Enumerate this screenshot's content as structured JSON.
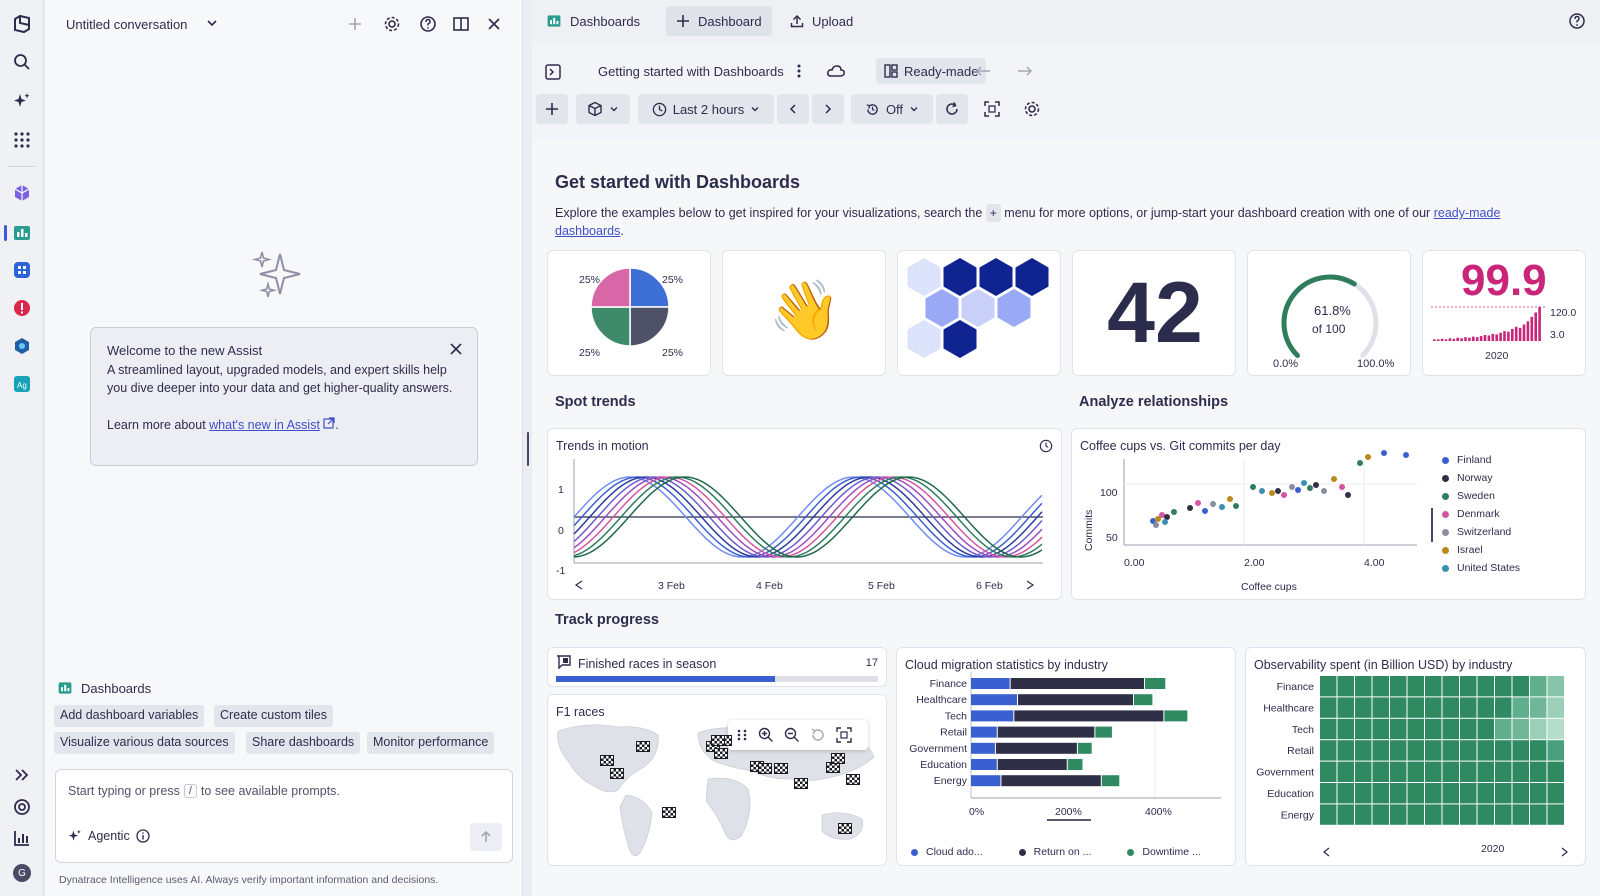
{
  "assist": {
    "conversation_title": "Untitled conversation",
    "welcome": {
      "title": "Welcome to the new Assist",
      "body": "A streamlined layout, upgraded models, and expert skills help you dive deeper into your data and get higher-quality answers.",
      "learn_prefix": "Learn more about ",
      "learn_link": "what's new in Assist",
      "learn_suffix": "."
    },
    "context_label": "Dashboards",
    "chips": [
      "Add dashboard variables",
      "Create custom tiles",
      "Visualize various data sources",
      "Share dashboards",
      "Monitor performance"
    ],
    "prompt_before": "Start typing or press",
    "prompt_key": "/",
    "prompt_after": "to see available prompts.",
    "agentic_label": "Agentic",
    "disclaimer": "Dynatrace Intelligence uses AI. Always verify important information and decisions.",
    "avatar_letter": "G"
  },
  "tabs": [
    {
      "label": "Dashboards"
    },
    {
      "label": "Dashboard"
    },
    {
      "label": "Upload"
    }
  ],
  "toolbar": {
    "dashboard_name": "Getting started with Dashboards",
    "ready_made": "Ready-made",
    "timeframe": "Last 2 hours",
    "refresh": "Off"
  },
  "intro": {
    "title": "Get started with Dashboards",
    "desc_before": "Explore the examples below to get inspired for your visualizations, search the",
    "desc_plus": "+",
    "desc_middle": "menu for more options, or jump-start your dashboard creation with one of our",
    "desc_link": "ready-made dashboards",
    "desc_end": "."
  },
  "pie": {
    "labels": [
      "25%",
      "25%",
      "25%",
      "25%"
    ],
    "colors": [
      "#3d6fd6",
      "#4f5169",
      "#3e8a6a",
      "#d867a8"
    ]
  },
  "emoji": "👋",
  "single_value": "42",
  "gauge": {
    "value_label": "61.8%",
    "of_label": "of 100",
    "min": "0.0%",
    "max": "100.0%",
    "fraction": 0.618
  },
  "sparkline": {
    "value": "99.9",
    "max_label": "120.0",
    "min_label": "3.0",
    "x_label": "2020"
  },
  "sections": {
    "trends": "Spot trends",
    "relationships": "Analyze relationships",
    "progress": "Track progress"
  },
  "trends_tile": {
    "title": "Trends in motion",
    "y_ticks": [
      "1",
      "0",
      "-1"
    ],
    "x_ticks": [
      "3 Feb",
      "4 Feb",
      "5 Feb",
      "6 Feb"
    ]
  },
  "scatter_tile": {
    "title": "Coffee cups vs. Git commits per day",
    "xlabel": "Coffee cups",
    "ylabel": "Commits",
    "x_ticks": [
      "0.00",
      "2.00",
      "4.00"
    ],
    "y_ticks": [
      "100",
      "50"
    ],
    "legend": [
      {
        "name": "Finland",
        "color": "#3a5fd0"
      },
      {
        "name": "Norway",
        "color": "#2f3047"
      },
      {
        "name": "Sweden",
        "color": "#2f7d5b"
      },
      {
        "name": "Denmark",
        "color": "#d456a2"
      },
      {
        "name": "Switzerland",
        "color": "#8a8ca0"
      },
      {
        "name": "Israel",
        "color": "#b88a1e"
      },
      {
        "name": "United States",
        "color": "#3c8fb0"
      }
    ]
  },
  "finished_races": {
    "title": "Finished races in season",
    "value": "17",
    "fraction": 0.68
  },
  "f1_tile": {
    "title": "F1 races"
  },
  "cloud_tile": {
    "title": "Cloud migration statistics by industry",
    "categories": [
      "Finance",
      "Healthcare",
      "Tech",
      "Retail",
      "Government",
      "Education",
      "Energy"
    ],
    "x_ticks": [
      "0%",
      "200%",
      "400%"
    ],
    "legend": [
      {
        "name": "Cloud ado...",
        "color": "#3a5fd0"
      },
      {
        "name": "Return on ...",
        "color": "#2f3047"
      },
      {
        "name": "Downtime ...",
        "color": "#2f8a62"
      }
    ]
  },
  "heat_tile": {
    "title": "Observability spent (in Billion USD) by industry",
    "categories": [
      "Finance",
      "Healthcare",
      "Tech",
      "Retail",
      "Government",
      "Education",
      "Energy"
    ],
    "x_label": "2020"
  }
}
